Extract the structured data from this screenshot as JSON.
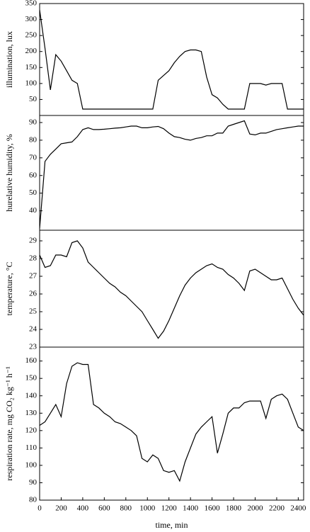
{
  "chart_data": [
    {
      "type": "line",
      "ylabel": "illumination, lux",
      "xlim": [
        0,
        2450
      ],
      "ylim": [
        0,
        350
      ],
      "yticks": [
        50,
        100,
        150,
        200,
        250,
        300,
        350
      ],
      "x": [
        0,
        50,
        100,
        150,
        200,
        250,
        300,
        350,
        400,
        450,
        500,
        550,
        600,
        650,
        700,
        750,
        800,
        850,
        900,
        950,
        1000,
        1050,
        1100,
        1150,
        1200,
        1250,
        1300,
        1350,
        1400,
        1450,
        1500,
        1550,
        1600,
        1650,
        1700,
        1750,
        1800,
        1850,
        1900,
        1950,
        2000,
        2050,
        2100,
        2150,
        2200,
        2250,
        2300,
        2350,
        2400,
        2450
      ],
      "series": [
        {
          "color": "#000000",
          "values": [
            330,
            210,
            80,
            190,
            170,
            140,
            110,
            100,
            20,
            20,
            20,
            20,
            20,
            20,
            20,
            20,
            20,
            20,
            20,
            20,
            20,
            20,
            110,
            125,
            140,
            165,
            185,
            200,
            205,
            205,
            200,
            120,
            65,
            55,
            35,
            20,
            20,
            20,
            20,
            100,
            100,
            100,
            95,
            100,
            100,
            100,
            20,
            20,
            20,
            20
          ]
        }
      ]
    },
    {
      "type": "line",
      "ylabel": "hurelative humidity, %",
      "xlim": [
        0,
        2450
      ],
      "ylim": [
        29,
        94
      ],
      "yticks": [
        40,
        50,
        60,
        70,
        80,
        90
      ],
      "x": [
        0,
        50,
        100,
        150,
        200,
        250,
        300,
        350,
        400,
        450,
        500,
        550,
        600,
        650,
        700,
        750,
        800,
        850,
        900,
        950,
        1000,
        1050,
        1100,
        1150,
        1200,
        1250,
        1300,
        1350,
        1400,
        1450,
        1500,
        1550,
        1600,
        1650,
        1700,
        1750,
        1800,
        1850,
        1900,
        1950,
        2000,
        2050,
        2100,
        2150,
        2200,
        2250,
        2300,
        2350,
        2400,
        2450
      ],
      "series": [
        {
          "color": "#000000",
          "values": [
            30,
            68,
            72,
            75,
            78,
            78.5,
            79,
            82,
            86,
            87,
            86,
            86,
            86.2,
            86.5,
            86.8,
            87,
            87.5,
            88,
            88,
            87,
            87,
            87.5,
            87.8,
            86.5,
            84,
            82,
            81.5,
            80.5,
            80,
            81,
            81.5,
            82.5,
            82.5,
            84,
            84,
            88,
            89,
            90,
            91,
            83.5,
            83,
            84,
            84,
            85,
            86,
            86.5,
            87,
            87.5,
            88,
            88
          ]
        }
      ]
    },
    {
      "type": "line",
      "ylabel": "temperature, °C",
      "xlim": [
        0,
        2450
      ],
      "ylim": [
        23,
        29.6
      ],
      "yticks": [
        23,
        24,
        25,
        26,
        27,
        28,
        29
      ],
      "x": [
        0,
        50,
        100,
        150,
        200,
        250,
        300,
        350,
        400,
        450,
        500,
        550,
        600,
        650,
        700,
        750,
        800,
        850,
        900,
        950,
        1000,
        1050,
        1100,
        1150,
        1200,
        1250,
        1300,
        1350,
        1400,
        1450,
        1500,
        1550,
        1600,
        1650,
        1700,
        1750,
        1800,
        1850,
        1900,
        1950,
        2000,
        2050,
        2100,
        2150,
        2200,
        2250,
        2300,
        2350,
        2400,
        2450
      ],
      "series": [
        {
          "color": "#000000",
          "values": [
            28.2,
            27.5,
            27.6,
            28.2,
            28.2,
            28.1,
            28.9,
            29,
            28.6,
            27.8,
            27.5,
            27.2,
            26.9,
            26.6,
            26.4,
            26.1,
            25.9,
            25.6,
            25.3,
            25,
            24.5,
            24,
            23.5,
            23.9,
            24.5,
            25.2,
            25.9,
            26.5,
            26.9,
            27.2,
            27.4,
            27.6,
            27.7,
            27.5,
            27.4,
            27.1,
            26.9,
            26.6,
            26.2,
            27.3,
            27.4,
            27.2,
            27,
            26.8,
            26.8,
            26.9,
            26.3,
            25.7,
            25.2,
            24.8
          ]
        }
      ]
    },
    {
      "type": "line",
      "ylabel": "respiration rate, mg CO₂ kg⁻¹ h⁻¹",
      "xlabel": "time, min",
      "xlim": [
        0,
        2450
      ],
      "ylim": [
        80,
        168
      ],
      "yticks": [
        80,
        90,
        100,
        110,
        120,
        130,
        140,
        150,
        160
      ],
      "xticks": [
        0,
        200,
        400,
        600,
        800,
        1000,
        1200,
        1400,
        1600,
        1800,
        2000,
        2200,
        2400
      ],
      "x": [
        0,
        50,
        100,
        150,
        200,
        250,
        300,
        350,
        400,
        450,
        500,
        550,
        600,
        650,
        700,
        750,
        800,
        850,
        900,
        950,
        1000,
        1050,
        1100,
        1150,
        1200,
        1250,
        1300,
        1350,
        1400,
        1450,
        1500,
        1550,
        1600,
        1650,
        1700,
        1750,
        1800,
        1850,
        1900,
        1950,
        2000,
        2050,
        2100,
        2150,
        2200,
        2250,
        2300,
        2350,
        2400,
        2450
      ],
      "series": [
        {
          "color": "#000000",
          "values": [
            123,
            125,
            130,
            135,
            128,
            147,
            157,
            159,
            158,
            158,
            135,
            133,
            130,
            128,
            125,
            124,
            122,
            120,
            117,
            104,
            102,
            106,
            104,
            97,
            96,
            97,
            91,
            102,
            110,
            118,
            122,
            125,
            128,
            107,
            118,
            130,
            133,
            133,
            136,
            137,
            137,
            137,
            127,
            138,
            140,
            141,
            138,
            130,
            122,
            120
          ]
        }
      ]
    }
  ]
}
